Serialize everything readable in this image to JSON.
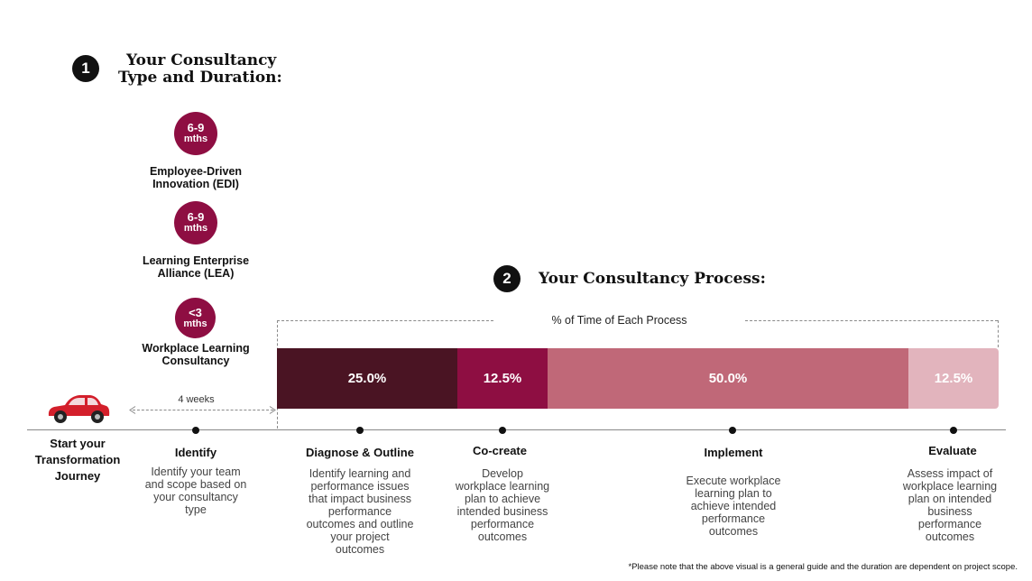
{
  "section1": {
    "number": "1",
    "title_line1": "Your Consultancy",
    "title_line2": "Type and Duration:"
  },
  "consultancy_types": [
    {
      "duration": "6-9",
      "unit": "mths",
      "label_line1": "Employee-Driven",
      "label_line2": "Innovation (EDI)"
    },
    {
      "duration": "6-9",
      "unit": "mths",
      "label_line1": "Learning Enterprise",
      "label_line2": "Alliance (LEA)"
    },
    {
      "duration": "<3",
      "unit": "mths",
      "label_line1": "Workplace Learning",
      "label_line2": "Consultancy"
    }
  ],
  "section2": {
    "number": "2",
    "title": "Your Consultancy Process:"
  },
  "bracket_label": "% of Time of Each Process",
  "weeks_label": "4 weeks",
  "chart_data": {
    "type": "bar",
    "orientation": "horizontal-stacked",
    "title": "% of Time of Each Process",
    "categories": [
      "Diagnose & Outline",
      "Co-create",
      "Implement",
      "Evaluate"
    ],
    "values": [
      25.0,
      12.5,
      50.0,
      12.5
    ],
    "labels": [
      "25.0%",
      "12.5%",
      "50.0%",
      "12.5%"
    ],
    "colors": [
      "#4a1423",
      "#8e0e42",
      "#c06878",
      "#e2b4bd"
    ],
    "ylim": [
      0,
      100
    ]
  },
  "timeline": {
    "start_label_line1": "Start your",
    "start_label_line2": "Transformation",
    "start_label_line3": "Journey",
    "stages": [
      {
        "title": "Identify",
        "desc": [
          "Identify your team",
          "and scope based on",
          "your consultancy",
          "type"
        ]
      },
      {
        "title": "Diagnose & Outline",
        "desc": [
          "Identify learning and",
          "performance issues",
          "that impact business",
          "performance",
          "outcomes and outline",
          "your project",
          "outcomes"
        ]
      },
      {
        "title": "Co-create",
        "desc": [
          "Develop",
          "workplace learning",
          "plan to achieve",
          "intended business",
          "performance",
          "outcomes"
        ]
      },
      {
        "title": "Implement",
        "desc": [
          "Execute workplace",
          "learning plan to",
          "achieve intended",
          "performance",
          "outcomes"
        ]
      },
      {
        "title": "Evaluate",
        "desc": [
          "Assess impact of",
          "workplace learning",
          "plan on intended",
          "business",
          "performance",
          "outcomes"
        ]
      }
    ]
  },
  "footnote": "*Please note that the above visual is a general guide and the duration are dependent on project scope.",
  "colors": {
    "accent": "#8e0e42",
    "car": "#d31f2b"
  }
}
